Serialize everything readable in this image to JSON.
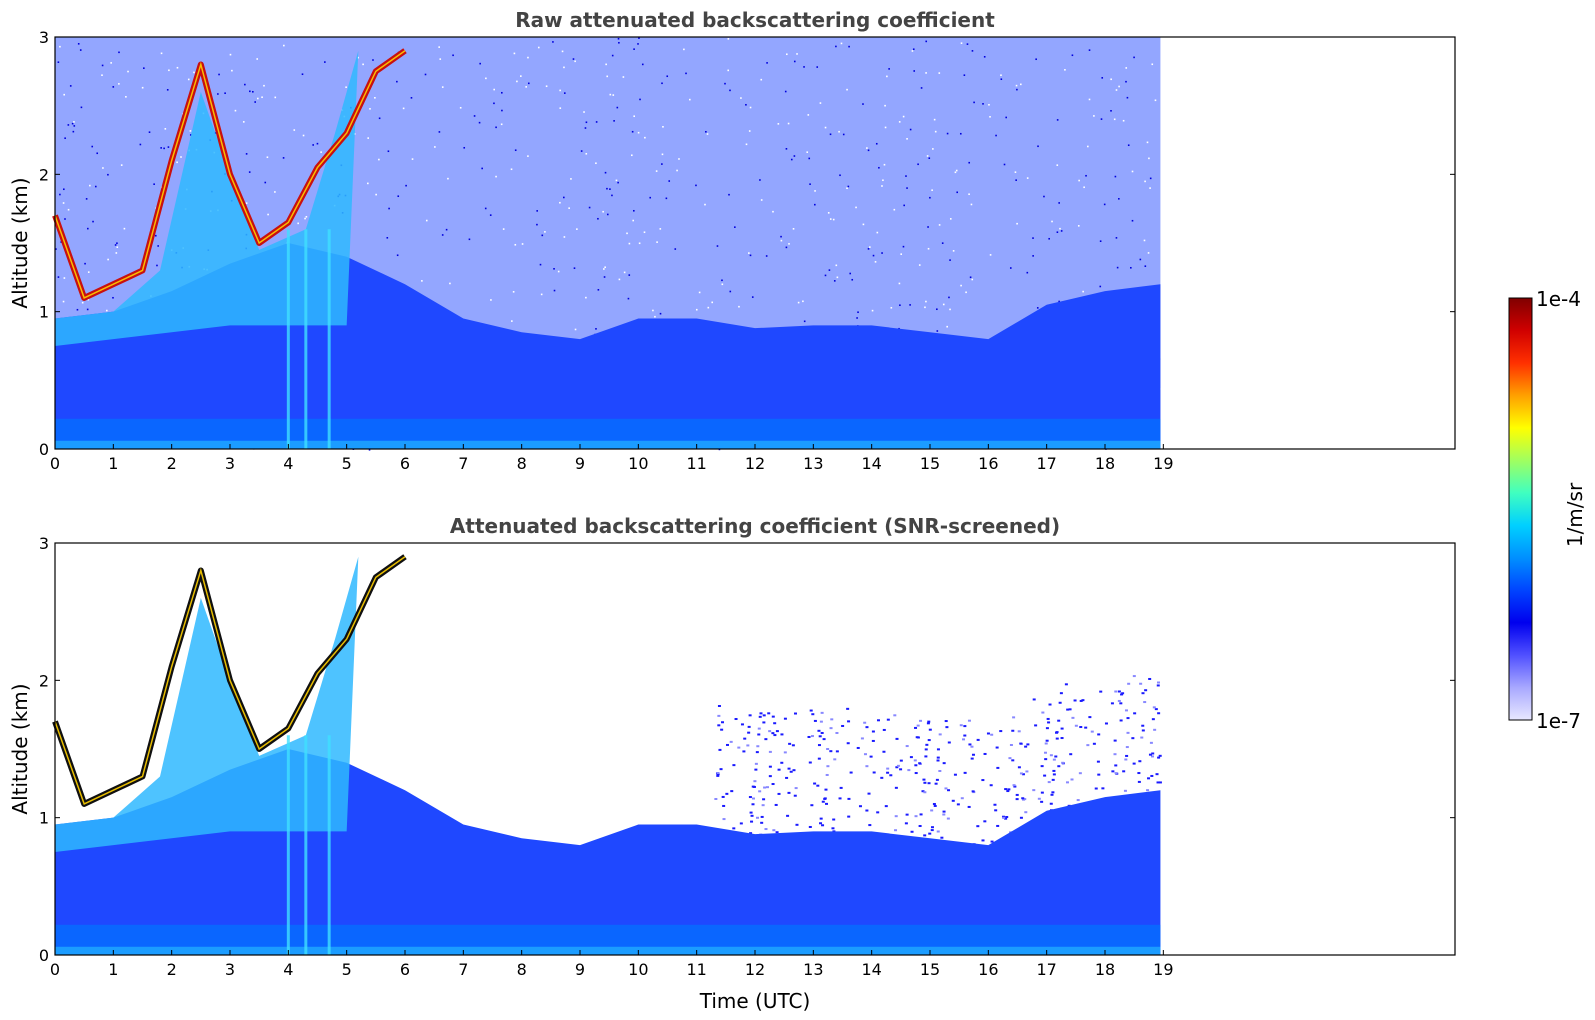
{
  "chart_data": [
    {
      "type": "heatmap",
      "title": "Raw attenuated backscattering coefficient",
      "xlabel": "",
      "ylabel": "Altitude (km)",
      "xlim": [
        0,
        24
      ],
      "ylim": [
        0,
        3
      ],
      "xticks": [
        "0",
        "1",
        "2",
        "3",
        "4",
        "5",
        "6",
        "7",
        "8",
        "9",
        "10",
        "11",
        "12",
        "13",
        "14",
        "15",
        "16",
        "17",
        "18",
        "19"
      ],
      "yticks": [
        "0",
        "1",
        "2",
        "3"
      ],
      "data_extent_hours": [
        0,
        18.95
      ],
      "screened": false
    },
    {
      "type": "heatmap",
      "title": "Attenuated backscattering coefficient (SNR-screened)",
      "xlabel": "Time (UTC)",
      "ylabel": "Altitude (km)",
      "xlim": [
        0,
        24
      ],
      "ylim": [
        0,
        3
      ],
      "xticks": [
        "0",
        "1",
        "2",
        "3",
        "4",
        "5",
        "6",
        "7",
        "8",
        "9",
        "10",
        "11",
        "12",
        "13",
        "14",
        "15",
        "16",
        "17",
        "18",
        "19"
      ],
      "yticks": [
        "0",
        "1",
        "2",
        "3"
      ],
      "data_extent_hours": [
        0,
        18.95
      ],
      "screened": true
    }
  ],
  "colorbar": {
    "label": "1/m/sr",
    "max_label": "1e-4",
    "min_label": "1e-7",
    "scale": "log",
    "colors": [
      "#e8e8ff",
      "#a8a8ff",
      "#5050ff",
      "#0000ee",
      "#0044ff",
      "#0090ff",
      "#00d0ff",
      "#40ffc0",
      "#a0ff60",
      "#ffff00",
      "#ffa000",
      "#ff3000",
      "#d00000",
      "#800000"
    ]
  },
  "boundary_layer": {
    "hours": [
      0,
      1,
      2,
      3,
      4,
      5,
      6,
      7,
      8,
      9,
      10,
      11,
      12,
      13,
      14,
      15,
      16,
      17,
      18,
      18.95
    ],
    "top_km": [
      0.95,
      1.0,
      1.15,
      1.35,
      1.5,
      1.4,
      1.2,
      0.95,
      0.85,
      0.8,
      0.95,
      0.95,
      0.88,
      0.9,
      0.9,
      0.85,
      0.8,
      1.05,
      1.15,
      1.2
    ]
  },
  "cloud_layers": {
    "hours": [
      0,
      0.5,
      1,
      1.5,
      2,
      2.5,
      3,
      3.5,
      4,
      4.5,
      5,
      5.5,
      6
    ],
    "alt_km": [
      1.7,
      1.1,
      1.2,
      1.3,
      2.1,
      2.8,
      2.0,
      1.5,
      1.65,
      2.05,
      2.3,
      2.75,
      2.9
    ]
  }
}
